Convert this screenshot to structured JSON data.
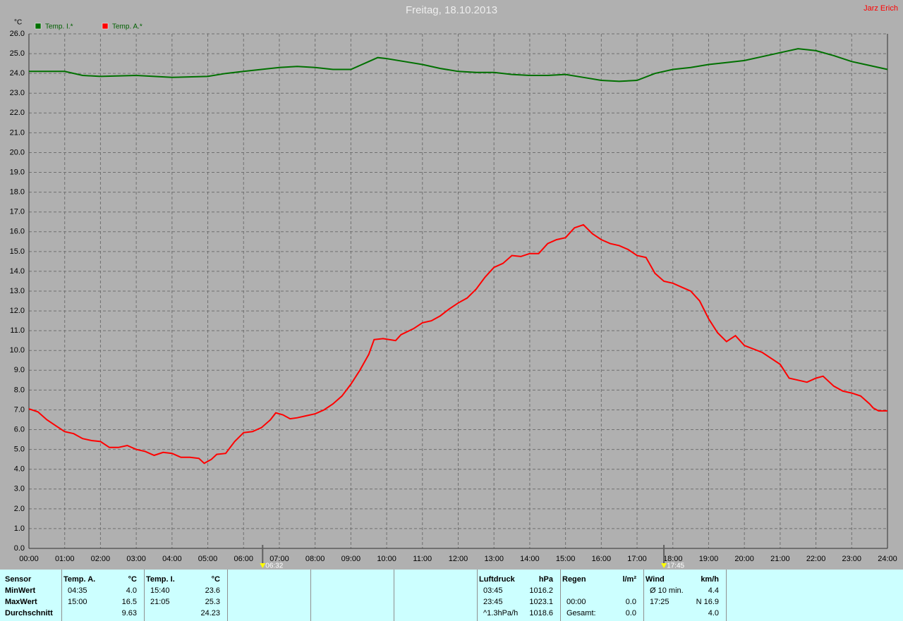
{
  "chart_data": {
    "type": "line",
    "title": "Freitag, 18.10.2013",
    "author": "Jarz Erich",
    "y_label": "°C",
    "xlim": [
      0,
      24
    ],
    "ylim": [
      0,
      26
    ],
    "grid": true,
    "xticks": [
      {
        "value": 0,
        "label": "00:00"
      },
      {
        "value": 1,
        "label": "01:00"
      },
      {
        "value": 2,
        "label": "02:00"
      },
      {
        "value": 3,
        "label": "03:00"
      },
      {
        "value": 4,
        "label": "04:00"
      },
      {
        "value": 5,
        "label": "05:00"
      },
      {
        "value": 6,
        "label": "06:00"
      },
      {
        "value": 7,
        "label": "07:00"
      },
      {
        "value": 8,
        "label": "08:00"
      },
      {
        "value": 9,
        "label": "09:00"
      },
      {
        "value": 10,
        "label": "10:00"
      },
      {
        "value": 11,
        "label": "11:00"
      },
      {
        "value": 12,
        "label": "12:00"
      },
      {
        "value": 13,
        "label": "13:00"
      },
      {
        "value": 14,
        "label": "14:00"
      },
      {
        "value": 15,
        "label": "15:00"
      },
      {
        "value": 16,
        "label": "16:00"
      },
      {
        "value": 17,
        "label": "17:00"
      },
      {
        "value": 18,
        "label": "18:00"
      },
      {
        "value": 19,
        "label": "19:00"
      },
      {
        "value": 20,
        "label": "20:00"
      },
      {
        "value": 21,
        "label": "21:00"
      },
      {
        "value": 22,
        "label": "22:00"
      },
      {
        "value": 23,
        "label": "23:00"
      },
      {
        "value": 24,
        "label": "24:00"
      }
    ],
    "yticks": [
      {
        "value": 0,
        "label": "0.0"
      },
      {
        "value": 1,
        "label": "1.0"
      },
      {
        "value": 2,
        "label": "2.0"
      },
      {
        "value": 3,
        "label": "3.0"
      },
      {
        "value": 4,
        "label": "4.0"
      },
      {
        "value": 5,
        "label": "5.0"
      },
      {
        "value": 6,
        "label": "6.0"
      },
      {
        "value": 7,
        "label": "7.0"
      },
      {
        "value": 8,
        "label": "8.0"
      },
      {
        "value": 9,
        "label": "9.0"
      },
      {
        "value": 10,
        "label": "10.0"
      },
      {
        "value": 11,
        "label": "11.0"
      },
      {
        "value": 12,
        "label": "12.0"
      },
      {
        "value": 13,
        "label": "13.0"
      },
      {
        "value": 14,
        "label": "14.0"
      },
      {
        "value": 15,
        "label": "15.0"
      },
      {
        "value": 16,
        "label": "16.0"
      },
      {
        "value": 17,
        "label": "17.0"
      },
      {
        "value": 18,
        "label": "18.0"
      },
      {
        "value": 19,
        "label": "19.0"
      },
      {
        "value": 20,
        "label": "20.0"
      },
      {
        "value": 21,
        "label": "21.0"
      },
      {
        "value": 22,
        "label": "22.0"
      },
      {
        "value": 23,
        "label": "23.0"
      },
      {
        "value": 24,
        "label": "24.0"
      },
      {
        "value": 25,
        "label": "25.0"
      },
      {
        "value": 26,
        "label": "26.0"
      }
    ],
    "annotations": [
      {
        "x": 6.533,
        "label": "06:32"
      },
      {
        "x": 17.75,
        "label": "17:45"
      }
    ],
    "series": [
      {
        "name": "Temp. I.*",
        "color": "#007000",
        "x": [
          0,
          1,
          1.5,
          2,
          3,
          3.5,
          4,
          5,
          5.5,
          6,
          6.5,
          7,
          7.5,
          8,
          8.5,
          9,
          9.5,
          9.75,
          10,
          10.5,
          11,
          11.5,
          12,
          12.5,
          13,
          13.5,
          14,
          14.5,
          15,
          15.5,
          16,
          16.5,
          17,
          17.5,
          18,
          18.5,
          19,
          19.5,
          20,
          20.5,
          21,
          21.5,
          22,
          22.5,
          23,
          23.5,
          24
        ],
        "values": [
          24.1,
          24.1,
          23.9,
          23.85,
          23.9,
          23.85,
          23.8,
          23.85,
          24.0,
          24.1,
          24.2,
          24.3,
          24.35,
          24.3,
          24.2,
          24.2,
          24.6,
          24.8,
          24.75,
          24.6,
          24.45,
          24.25,
          24.1,
          24.05,
          24.05,
          23.95,
          23.9,
          23.9,
          23.95,
          23.8,
          23.65,
          23.6,
          23.65,
          24.0,
          24.2,
          24.3,
          24.45,
          24.55,
          24.65,
          24.85,
          25.05,
          25.25,
          25.15,
          24.9,
          24.6,
          24.4,
          24.2
        ]
      },
      {
        "name": "Temp. A.*",
        "color": "#ff0000",
        "x": [
          0,
          0.25,
          0.5,
          0.75,
          1,
          1.25,
          1.5,
          1.75,
          2,
          2.25,
          2.5,
          2.75,
          3,
          3.25,
          3.5,
          3.75,
          4,
          4.25,
          4.5,
          4.75,
          4.9,
          5.1,
          5.25,
          5.5,
          5.75,
          6,
          6.25,
          6.5,
          6.75,
          6.9,
          7.1,
          7.3,
          7.5,
          7.75,
          8,
          8.25,
          8.5,
          8.75,
          9,
          9.25,
          9.5,
          9.65,
          9.9,
          10.25,
          10.4,
          10.75,
          11,
          11.25,
          11.5,
          11.75,
          12,
          12.25,
          12.5,
          12.75,
          13,
          13.25,
          13.5,
          13.75,
          14,
          14.25,
          14.5,
          14.75,
          15,
          15.25,
          15.5,
          15.75,
          16,
          16.25,
          16.5,
          16.75,
          17,
          17.25,
          17.5,
          17.75,
          18,
          18.25,
          18.5,
          18.75,
          19,
          19.25,
          19.5,
          19.75,
          20,
          20.5,
          21,
          21.25,
          21.5,
          21.75,
          22,
          22.2,
          22.5,
          22.75,
          23,
          23.25,
          23.5,
          23.6,
          23.75,
          24
        ],
        "values": [
          7.05,
          6.9,
          6.5,
          6.2,
          5.9,
          5.8,
          5.55,
          5.45,
          5.4,
          5.1,
          5.1,
          5.2,
          5.0,
          4.9,
          4.7,
          4.85,
          4.8,
          4.6,
          4.6,
          4.55,
          4.3,
          4.5,
          4.75,
          4.8,
          5.4,
          5.85,
          5.9,
          6.1,
          6.5,
          6.85,
          6.75,
          6.55,
          6.6,
          6.7,
          6.8,
          7.0,
          7.3,
          7.7,
          8.3,
          9.0,
          9.8,
          10.55,
          10.6,
          10.5,
          10.8,
          11.1,
          11.4,
          11.5,
          11.75,
          12.1,
          12.4,
          12.65,
          13.1,
          13.7,
          14.2,
          14.4,
          14.8,
          14.75,
          14.9,
          14.9,
          15.4,
          15.6,
          15.7,
          16.2,
          16.35,
          15.9,
          15.6,
          15.4,
          15.3,
          15.1,
          14.8,
          14.7,
          13.9,
          13.5,
          13.4,
          13.2,
          13.0,
          12.5,
          11.6,
          10.9,
          10.45,
          10.75,
          10.25,
          9.9,
          9.3,
          8.6,
          8.5,
          8.4,
          8.6,
          8.7,
          8.2,
          7.95,
          7.85,
          7.7,
          7.3,
          7.1,
          6.95,
          6.95
        ]
      }
    ]
  },
  "table": {
    "panels": [
      {
        "rows": [
          [
            "Sensor",
            null
          ],
          [
            "MinWert",
            null
          ],
          [
            "MaxWert",
            null
          ],
          [
            "Durchschnitt",
            null
          ]
        ]
      },
      {
        "rows": [
          [
            "Temp. A.",
            "°C"
          ],
          [
            "04:35",
            "4.0"
          ],
          [
            "15:00",
            "16.5"
          ],
          [
            null,
            "9.63"
          ]
        ]
      },
      {
        "rows": [
          [
            "Temp. I.",
            "°C"
          ],
          [
            "15:40",
            "23.6"
          ],
          [
            "21:05",
            "25.3"
          ],
          [
            null,
            "24.23"
          ]
        ]
      },
      {
        "rows": [
          [
            "Luftdruck",
            "hPa"
          ],
          [
            "03:45",
            "1016.2"
          ],
          [
            "23:45",
            "1023.1"
          ],
          [
            "^1.3hPa/h",
            "1018.6"
          ]
        ]
      },
      {
        "rows": [
          [
            "Regen",
            "l/m²"
          ],
          [
            null,
            null
          ],
          [
            "00:00",
            "0.0"
          ],
          [
            "Gesamt:",
            "0.0"
          ]
        ]
      },
      {
        "rows": [
          [
            "Wind",
            "km/h"
          ],
          [
            "Ø 10 min.",
            "4.4"
          ],
          [
            "17:25",
            "N 16.9"
          ],
          [
            null,
            "4.0"
          ]
        ]
      }
    ]
  }
}
